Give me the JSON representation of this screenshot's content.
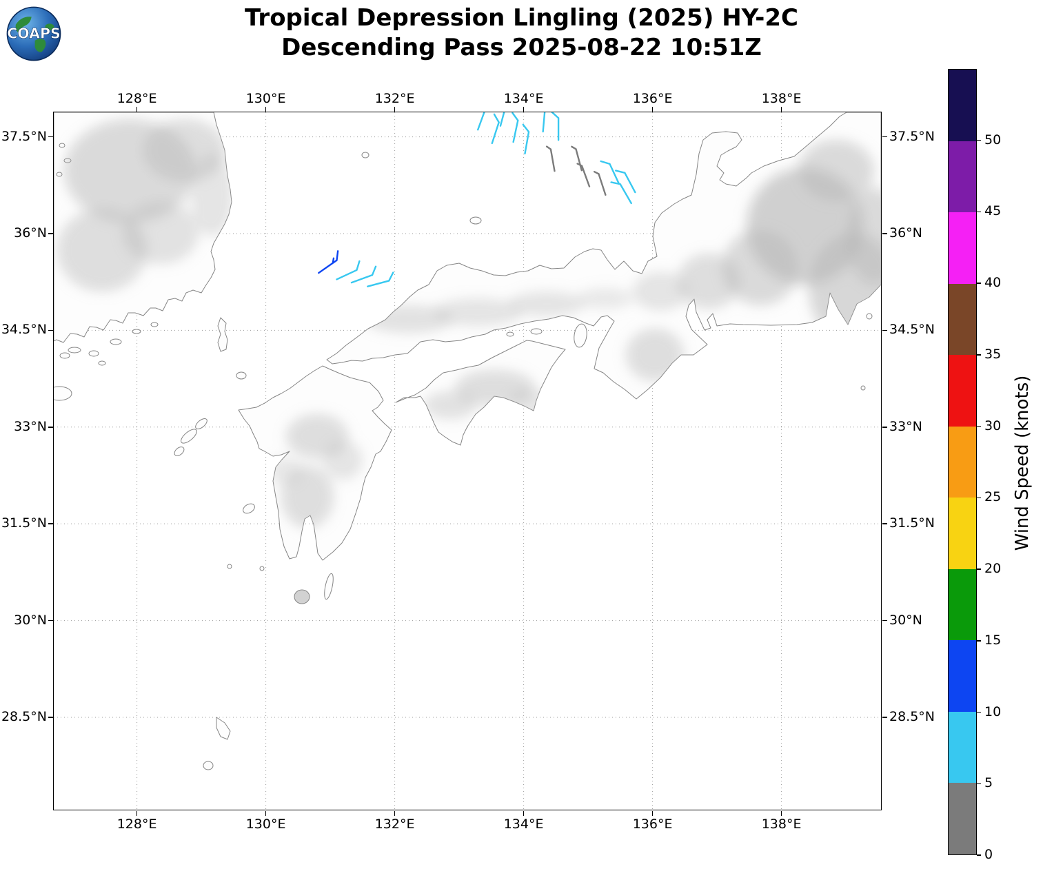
{
  "header": {
    "title_line1": "Tropical Depression Lingling (2025) HY-2C",
    "title_line2": "Descending Pass 2025-08-22 10:51Z"
  },
  "logo": {
    "text": "COAPS"
  },
  "axes": {
    "lon_ticks": [
      {
        "label": "128°E",
        "value": 128
      },
      {
        "label": "130°E",
        "value": 130
      },
      {
        "label": "132°E",
        "value": 132
      },
      {
        "label": "134°E",
        "value": 134
      },
      {
        "label": "136°E",
        "value": 136
      },
      {
        "label": "138°E",
        "value": 138
      }
    ],
    "lat_ticks": [
      {
        "label": "37.5°N",
        "value": 37.5
      },
      {
        "label": "36°N",
        "value": 36
      },
      {
        "label": "34.5°N",
        "value": 34.5
      },
      {
        "label": "33°N",
        "value": 33
      },
      {
        "label": "31.5°N",
        "value": 31.5
      },
      {
        "label": "30°N",
        "value": 30
      },
      {
        "label": "28.5°N",
        "value": 28.5
      }
    ]
  },
  "colorbar": {
    "label": "Wind Speed (knots)",
    "units": "knots",
    "ticks": [
      {
        "label": "0",
        "value": 0
      },
      {
        "label": "5",
        "value": 5
      },
      {
        "label": "10",
        "value": 10
      },
      {
        "label": "15",
        "value": 15
      },
      {
        "label": "20",
        "value": 20
      },
      {
        "label": "25",
        "value": 25
      },
      {
        "label": "30",
        "value": 30
      },
      {
        "label": "35",
        "value": 35
      },
      {
        "label": "40",
        "value": 40
      },
      {
        "label": "45",
        "value": 45
      },
      {
        "label": "50",
        "value": 50
      }
    ],
    "segments": [
      {
        "range_kt": "0-5",
        "color": "#7b7b7b"
      },
      {
        "range_kt": "5-10",
        "color": "#38c8f0"
      },
      {
        "range_kt": "10-15",
        "color": "#0d45f2"
      },
      {
        "range_kt": "15-20",
        "color": "#0a9a0a"
      },
      {
        "range_kt": "20-25",
        "color": "#f8d312"
      },
      {
        "range_kt": "25-30",
        "color": "#f89c14"
      },
      {
        "range_kt": "30-35",
        "color": "#ee1212"
      },
      {
        "range_kt": "35-40",
        "color": "#7a4628"
      },
      {
        "range_kt": "40-45",
        "color": "#f520f5"
      },
      {
        "range_kt": "45-50",
        "color": "#7d1ca8"
      },
      {
        "range_kt": ">50",
        "color": "#170f52"
      }
    ]
  },
  "chart_data": {
    "type": "map",
    "subtype": "satellite-scatterometer-wind-barbs",
    "storm": "Tropical Depression Lingling (2025)",
    "satellite": "HY-2C",
    "pass": "Descending",
    "datetime": "2025-08-22 10:51Z",
    "region": "Sea of Japan / Japan / Korea",
    "lon_range_deg_e": [
      126.7,
      139.5
    ],
    "lat_range_deg_n": [
      27.1,
      37.9
    ],
    "grid": "dotted",
    "wind_speed_units": "knots",
    "wind_barbs": [
      {
        "lon": 133.29,
        "lat": 37.61,
        "speed_kt": 8,
        "dir_deg": -70
      },
      {
        "lon": 133.64,
        "lat": 37.67,
        "speed_kt": 8,
        "dir_deg": -75
      },
      {
        "lon": 133.51,
        "lat": 37.4,
        "speed_kt": 8,
        "dir_deg": -72
      },
      {
        "lon": 133.84,
        "lat": 37.42,
        "speed_kt": 8,
        "dir_deg": -78
      },
      {
        "lon": 134.02,
        "lat": 37.24,
        "speed_kt": 8,
        "dir_deg": -80
      },
      {
        "lon": 134.3,
        "lat": 37.58,
        "speed_kt": 8,
        "dir_deg": -85
      },
      {
        "lon": 134.54,
        "lat": 37.45,
        "speed_kt": 8,
        "dir_deg": -90
      },
      {
        "lon": 134.48,
        "lat": 36.97,
        "speed_kt": 3,
        "dir_deg": -100
      },
      {
        "lon": 134.9,
        "lat": 36.98,
        "speed_kt": 3,
        "dir_deg": -105
      },
      {
        "lon": 135.02,
        "lat": 36.73,
        "speed_kt": 3,
        "dir_deg": -110
      },
      {
        "lon": 135.27,
        "lat": 36.6,
        "speed_kt": 3,
        "dir_deg": -108
      },
      {
        "lon": 135.48,
        "lat": 36.77,
        "speed_kt": 8,
        "dir_deg": -115
      },
      {
        "lon": 135.73,
        "lat": 36.64,
        "speed_kt": 8,
        "dir_deg": -118
      },
      {
        "lon": 135.67,
        "lat": 36.47,
        "speed_kt": 8,
        "dir_deg": -120
      },
      {
        "lon": 130.82,
        "lat": 35.39,
        "speed_kt": 13,
        "dir_deg": -35
      },
      {
        "lon": 131.1,
        "lat": 35.29,
        "speed_kt": 8,
        "dir_deg": -25
      },
      {
        "lon": 131.33,
        "lat": 35.24,
        "speed_kt": 8,
        "dir_deg": -20
      },
      {
        "lon": 131.58,
        "lat": 35.18,
        "speed_kt": 8,
        "dir_deg": -15
      }
    ]
  }
}
